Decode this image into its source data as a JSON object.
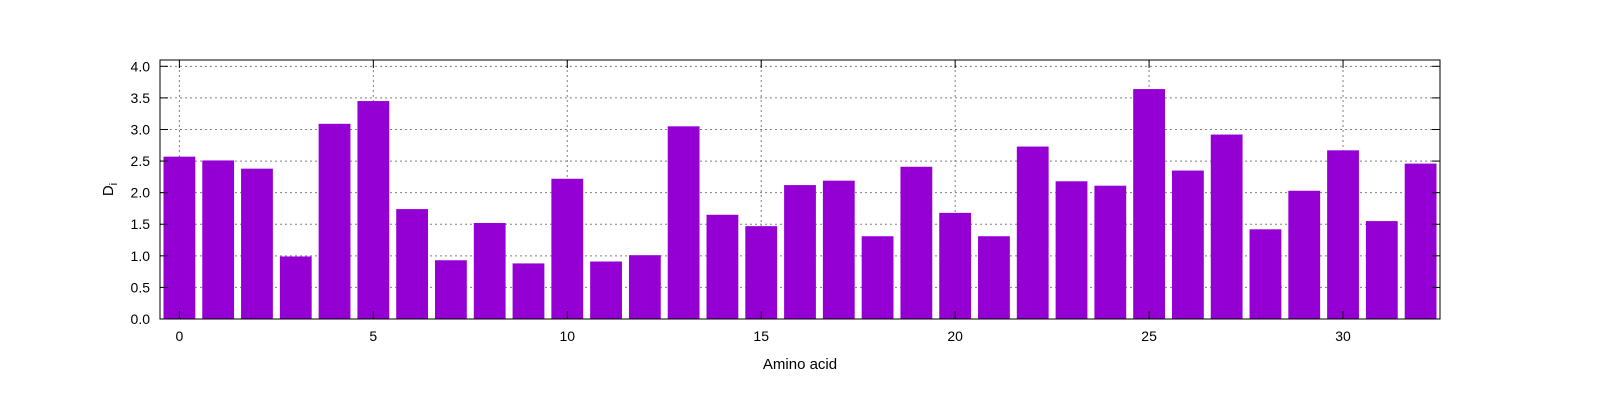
{
  "chart_data": {
    "type": "bar",
    "xlabel": "Amino acid",
    "ylabel": "D",
    "ylabel_subscript": "i",
    "xlim": [
      -0.5,
      32.5
    ],
    "ylim": [
      0.0,
      4.1
    ],
    "x_ticks": [
      0,
      5,
      10,
      15,
      20,
      25,
      30
    ],
    "y_ticks": [
      "0.0",
      "0.5",
      "1.0",
      "1.5",
      "2.0",
      "2.5",
      "3.0",
      "3.5",
      "4.0"
    ],
    "grid": true,
    "bar_color": "#9400D3",
    "x": [
      0,
      1,
      2,
      3,
      4,
      5,
      6,
      7,
      8,
      9,
      10,
      11,
      12,
      13,
      14,
      15,
      16,
      17,
      18,
      19,
      20,
      21,
      22,
      23,
      24,
      25,
      26,
      27,
      28,
      29,
      30,
      31,
      32
    ],
    "values": [
      2.57,
      2.51,
      2.38,
      0.99,
      3.09,
      3.45,
      1.74,
      0.93,
      1.52,
      0.88,
      2.22,
      0.91,
      1.01,
      3.05,
      1.65,
      1.47,
      2.12,
      2.19,
      1.31,
      2.41,
      1.68,
      1.31,
      2.73,
      2.18,
      2.11,
      3.64,
      2.35,
      2.92,
      1.42,
      2.03,
      2.67,
      1.55,
      2.46
    ]
  }
}
